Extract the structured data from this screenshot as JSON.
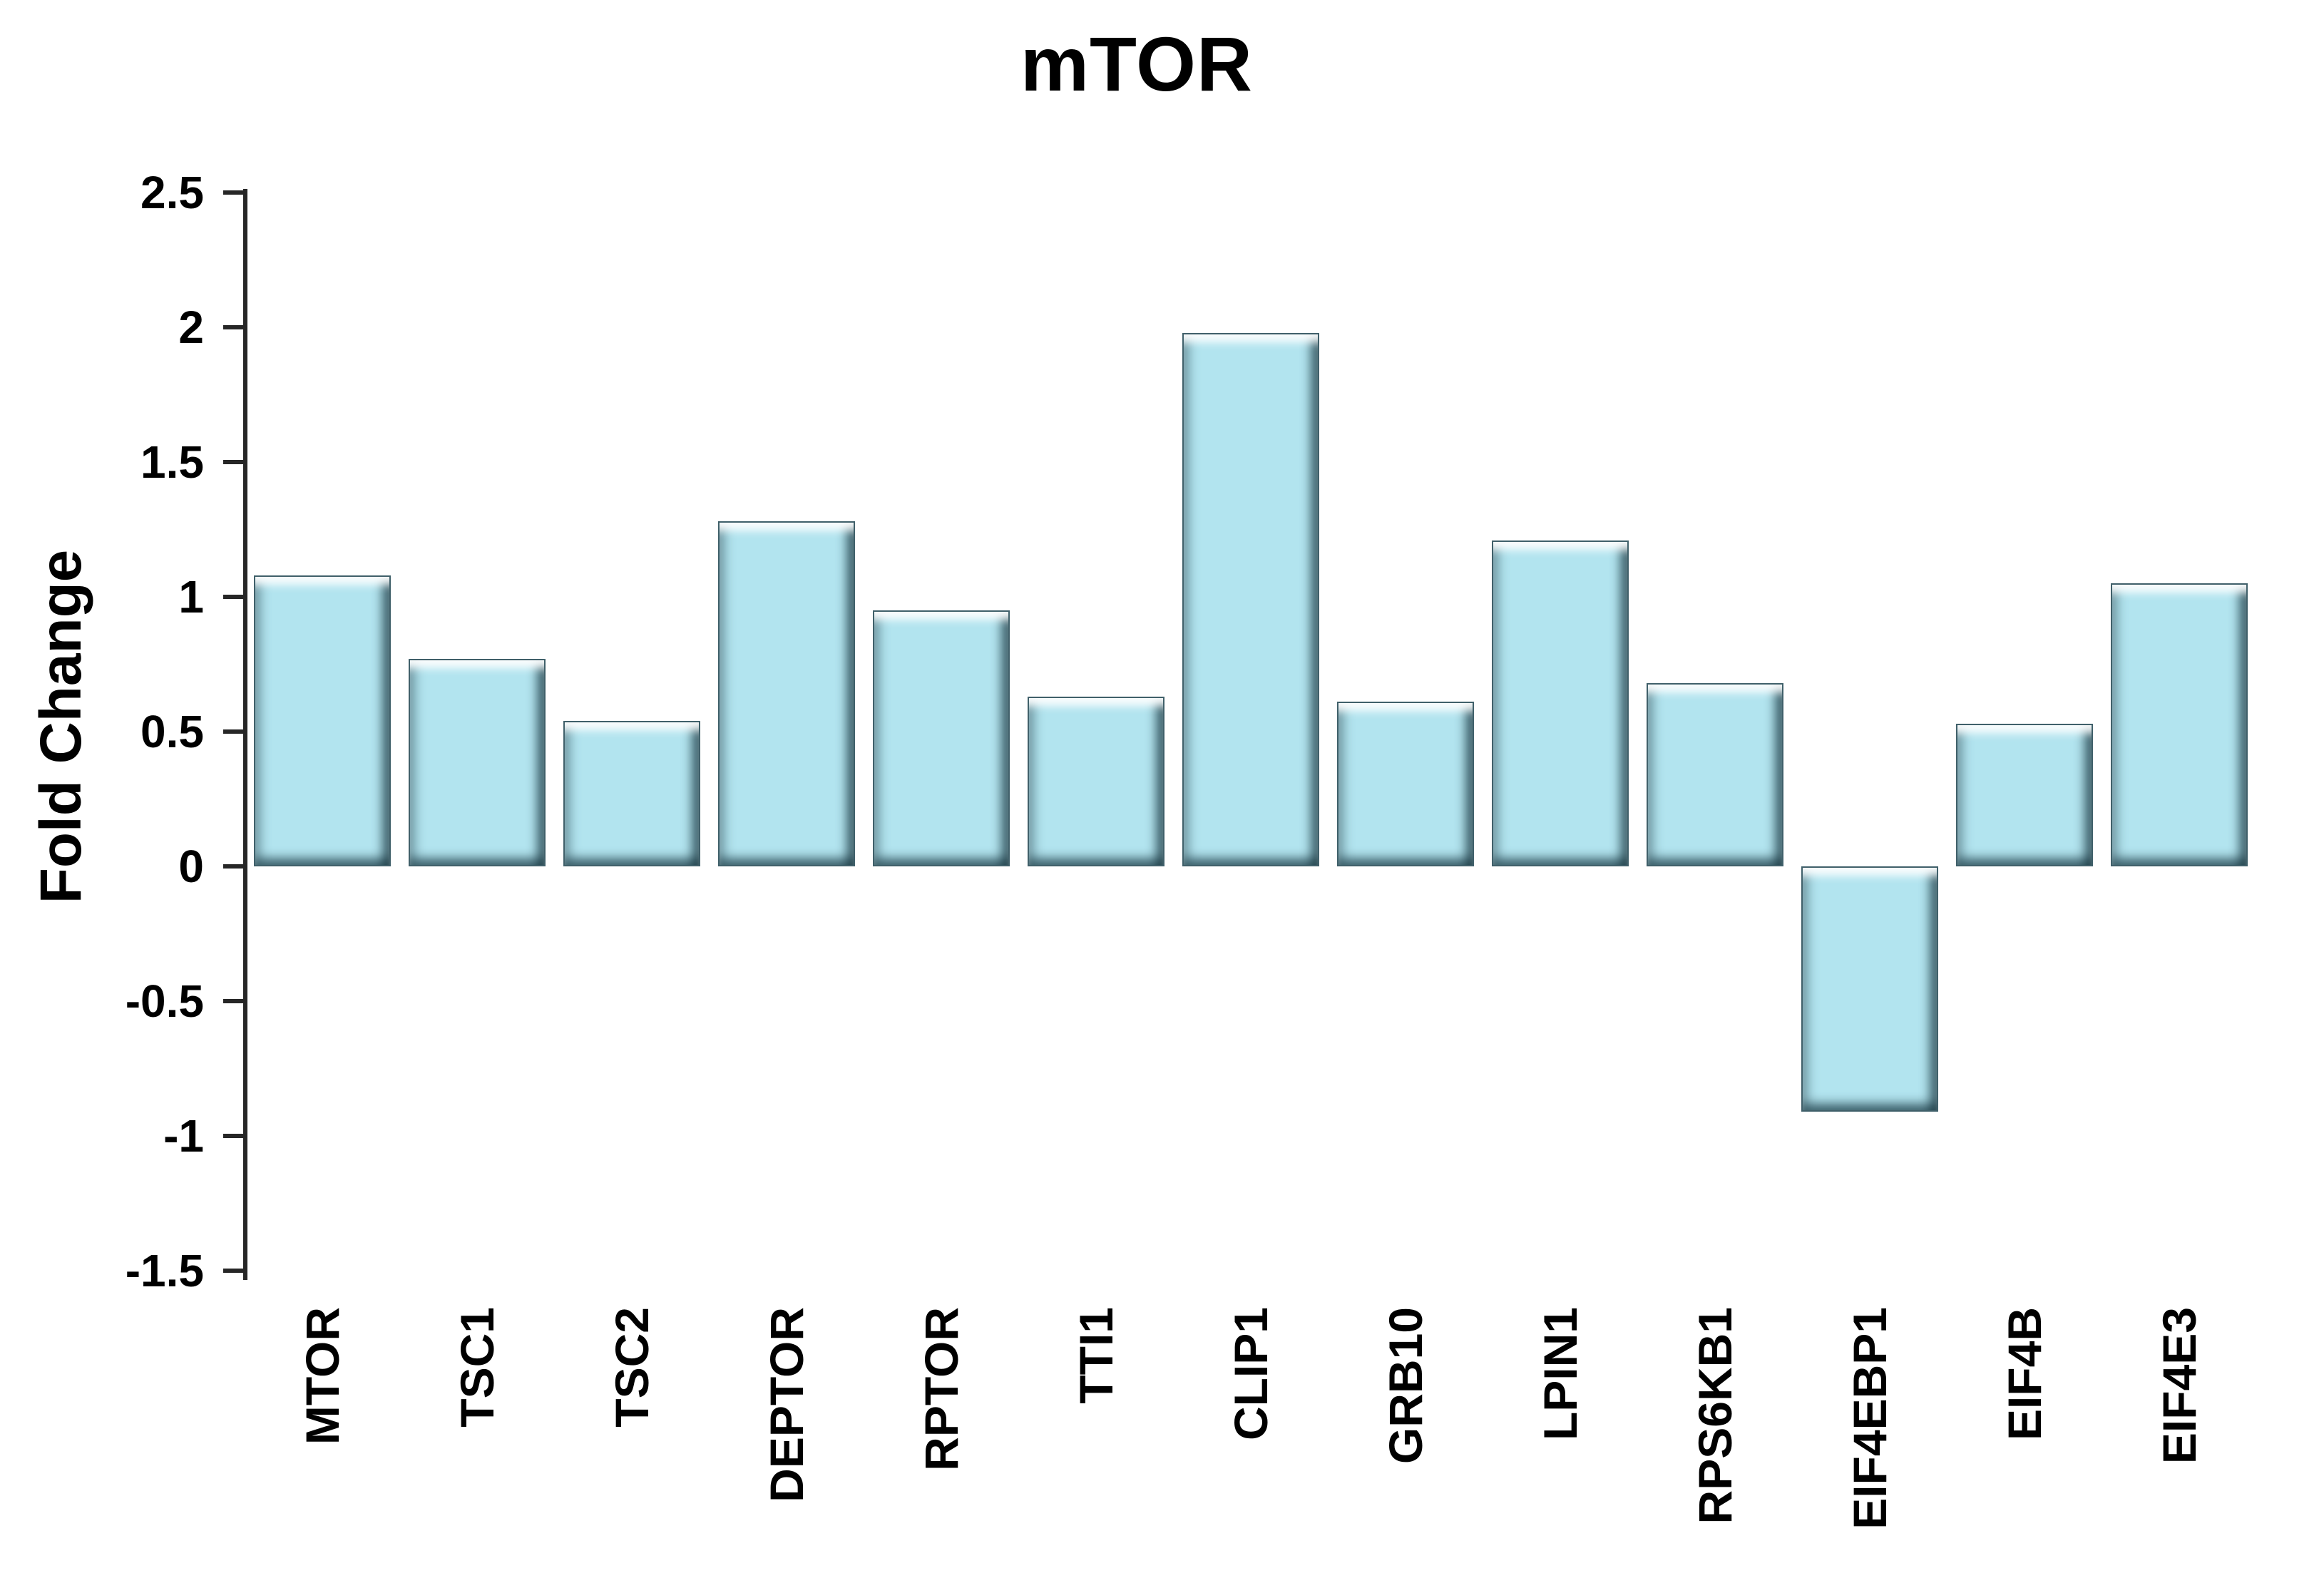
{
  "page": {
    "background": "#ffffff"
  },
  "chart_data": {
    "type": "bar",
    "title": "mTOR",
    "xlabel": "",
    "ylabel": "Fold Change",
    "categories": [
      "MTOR",
      "TSC1",
      "TSC2",
      "DEPTOR",
      "RPTOR",
      "TTI1",
      "CLIP1",
      "GRB10",
      "LPIN1",
      "RPS6KB1",
      "EIF4EBP1",
      "EIF4B",
      "EIF4E3"
    ],
    "values": [
      1.08,
      0.77,
      0.54,
      1.28,
      0.95,
      0.63,
      1.98,
      0.61,
      1.21,
      0.68,
      -0.91,
      0.53,
      1.05
    ],
    "ylim": [
      -1.5,
      2.5
    ],
    "ytick_step": 0.5,
    "ytick_labels": [
      "2.5",
      "2",
      "1.5",
      "1",
      "0.5",
      "0",
      "-0.5",
      "-1",
      "-1.5"
    ],
    "grid": false,
    "legend": false,
    "bar_style": "3d-bevel",
    "x_tick_rotation_deg": 90,
    "colors": {
      "bar_fill": "#b2e4ef",
      "bar_border": "#40606a",
      "axis": "#262626",
      "text": "#000000"
    }
  }
}
